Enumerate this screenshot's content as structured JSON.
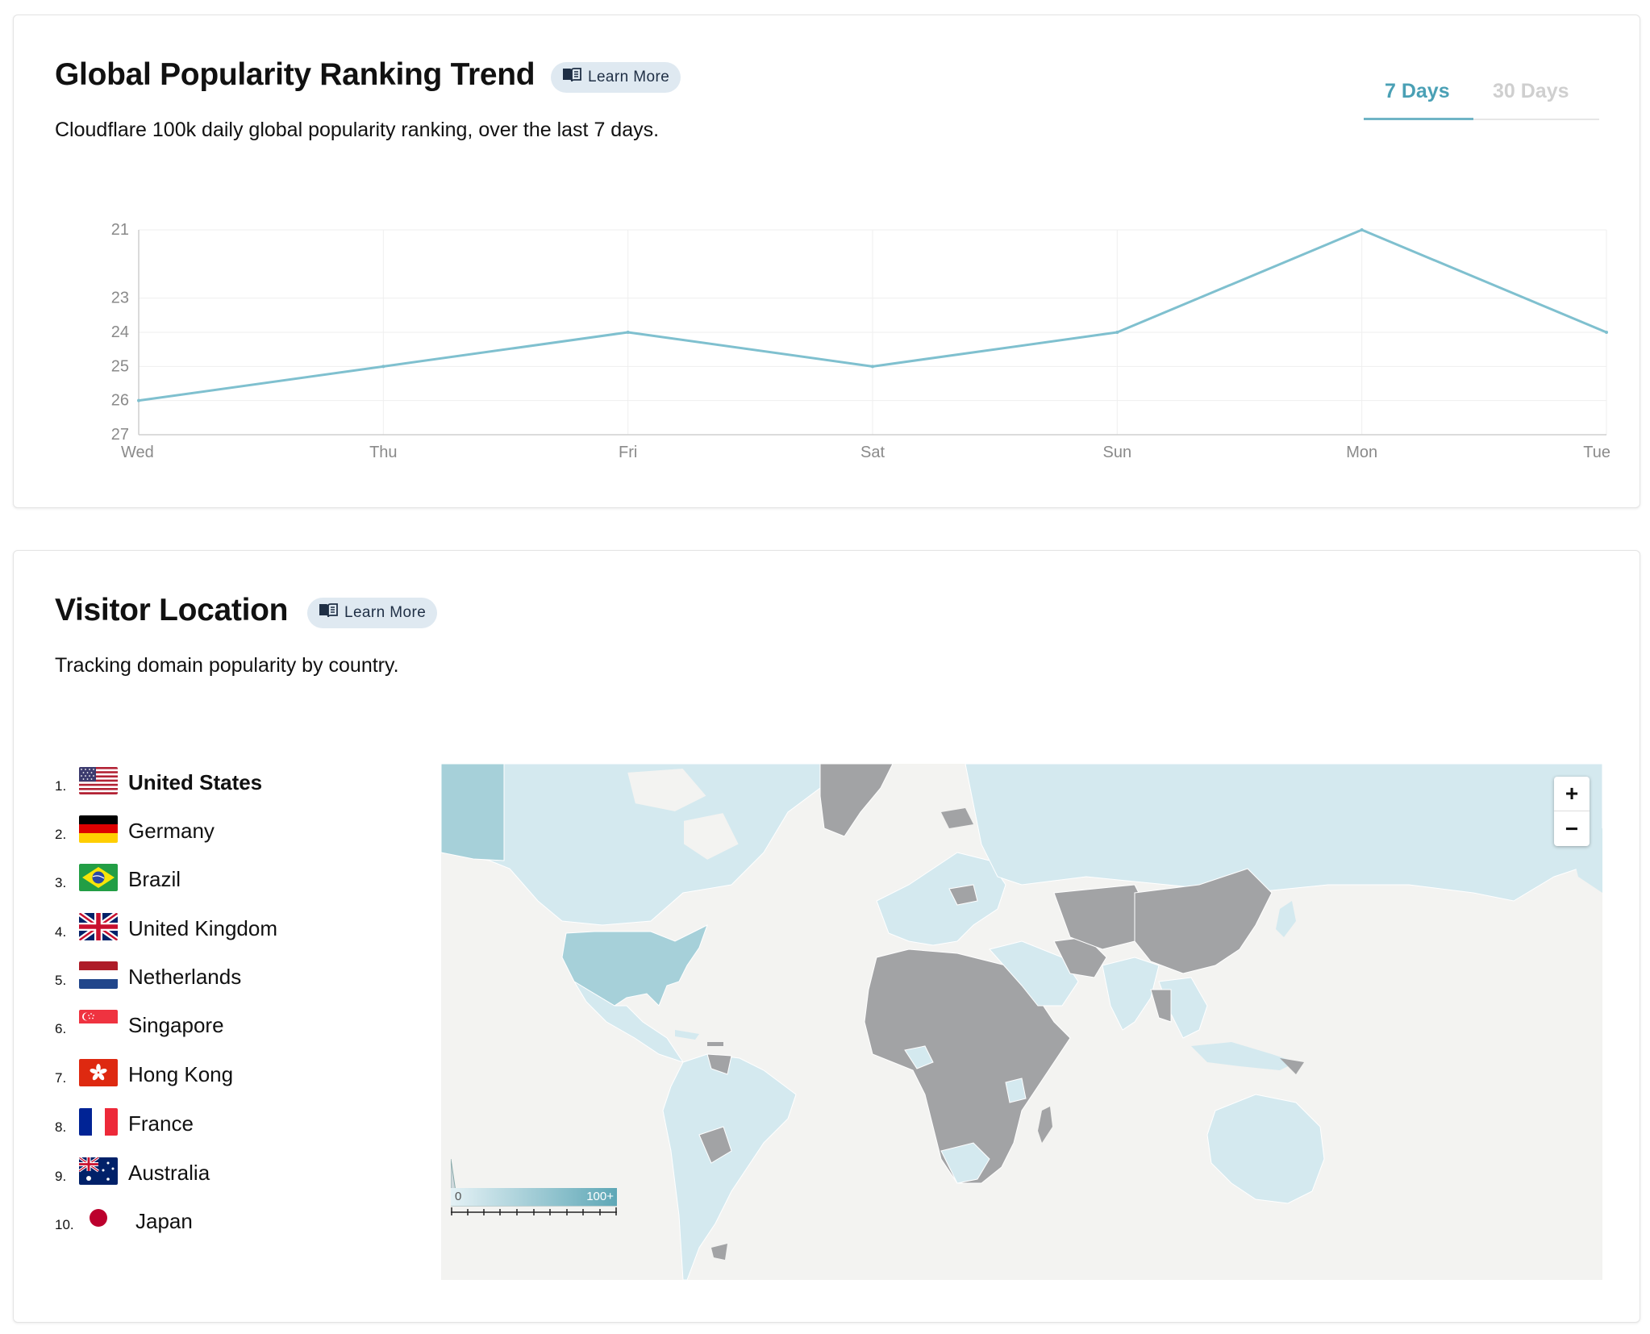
{
  "trend": {
    "title": "Global Popularity Ranking Trend",
    "learn_more": "Learn More",
    "description": "Cloudflare 100k daily global popularity ranking, over the last 7 days.",
    "tabs": [
      {
        "label": "7 Days",
        "active": true
      },
      {
        "label": "30 Days",
        "active": false
      }
    ]
  },
  "chart_data": {
    "type": "line",
    "x": [
      "Wed",
      "Thu",
      "Fri",
      "Sat",
      "Sun",
      "Mon",
      "Tue"
    ],
    "series": [
      {
        "values": [
          26,
          25,
          24,
          25,
          24,
          21,
          24
        ]
      }
    ],
    "y_ticks": [
      21,
      23,
      24,
      25,
      26,
      27
    ],
    "ylim": [
      21,
      27
    ],
    "y_inverted": true,
    "grid": true,
    "color": "#7fc0cf"
  },
  "location": {
    "title": "Visitor Location",
    "learn_more": "Learn More",
    "description": "Tracking domain popularity by country.",
    "ranking": [
      {
        "rank": "1.",
        "country": "United States",
        "flag": "us"
      },
      {
        "rank": "2.",
        "country": "Germany",
        "flag": "de"
      },
      {
        "rank": "3.",
        "country": "Brazil",
        "flag": "br"
      },
      {
        "rank": "4.",
        "country": "United Kingdom",
        "flag": "gb"
      },
      {
        "rank": "5.",
        "country": "Netherlands",
        "flag": "nl"
      },
      {
        "rank": "6.",
        "country": "Singapore",
        "flag": "sg"
      },
      {
        "rank": "7.",
        "country": "Hong Kong",
        "flag": "hk"
      },
      {
        "rank": "8.",
        "country": "France",
        "flag": "fr"
      },
      {
        "rank": "9.",
        "country": "Australia",
        "flag": "au"
      },
      {
        "rank": "10.",
        "country": "Japan",
        "flag": "jp"
      }
    ],
    "map": {
      "zoom_in": "+",
      "zoom_out": "−",
      "legend_min": "0",
      "legend_max": "100+",
      "colors": {
        "ocean": "#f3f3f1",
        "low": "#d4e9ef",
        "high": "#a6d0d9",
        "no_data": "#a2a3a5"
      }
    }
  }
}
